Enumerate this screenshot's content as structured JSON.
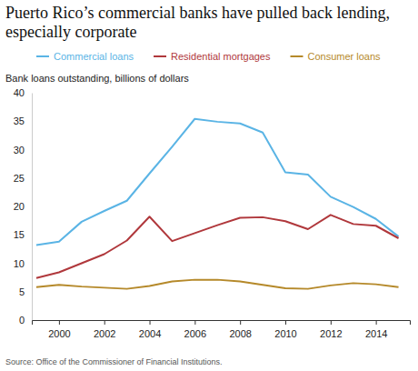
{
  "chart_data": {
    "type": "line",
    "title": "Puerto Rico’s commercial banks have pulled back lending, especially corporate",
    "y_label": "Bank loans outstanding, billions of dollars",
    "source": "Source: Office of the Commissioner of Financial Institutions.",
    "x": [
      1999,
      2000,
      2001,
      2002,
      2003,
      2004,
      2005,
      2006,
      2007,
      2008,
      2009,
      2010,
      2011,
      2012,
      2013,
      2014,
      2015
    ],
    "series": [
      {
        "name": "Commercial loans",
        "color": "#5ab4e5",
        "values": [
          13.2,
          13.8,
          17.3,
          19.2,
          21.0,
          25.8,
          30.5,
          35.4,
          34.9,
          34.6,
          33.0,
          26.0,
          25.6,
          21.7,
          19.9,
          17.8,
          14.7
        ]
      },
      {
        "name": "Residential mortgages",
        "color": "#b0383c",
        "values": [
          7.4,
          8.4,
          10.0,
          11.6,
          14.0,
          18.2,
          13.9,
          15.3,
          16.7,
          18.0,
          18.1,
          17.4,
          16.0,
          18.5,
          16.9,
          16.6,
          14.4
        ]
      },
      {
        "name": "Consumer loans",
        "color": "#b5892a",
        "values": [
          5.8,
          6.2,
          5.9,
          5.7,
          5.5,
          6.0,
          6.8,
          7.1,
          7.1,
          6.8,
          6.2,
          5.6,
          5.5,
          6.1,
          6.5,
          6.3,
          5.8
        ]
      }
    ],
    "xlim": [
      1998.8,
      2015.5
    ],
    "xticks": [
      2000,
      2002,
      2004,
      2006,
      2008,
      2010,
      2012,
      2014
    ],
    "ylim": [
      0,
      40
    ],
    "yticks": [
      0,
      5,
      10,
      15,
      20,
      25,
      30,
      35,
      40
    ],
    "grid": false,
    "legend": "top"
  }
}
